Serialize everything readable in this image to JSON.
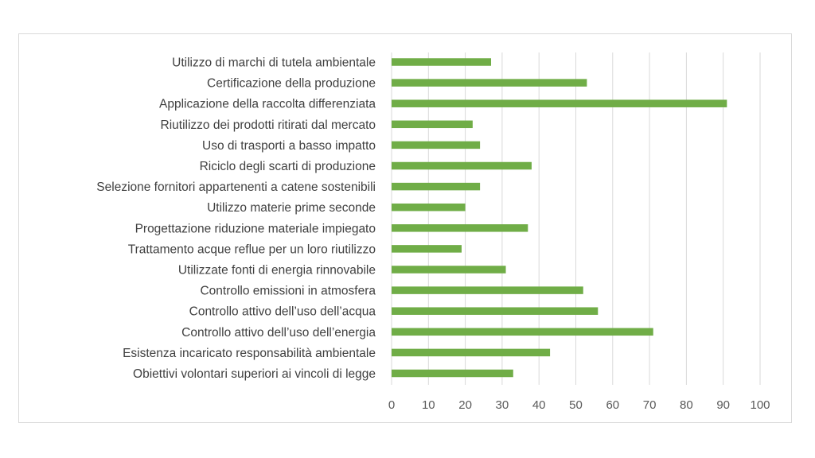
{
  "chart_data": {
    "type": "bar",
    "orientation": "horizontal",
    "title": "",
    "xlabel": "",
    "ylabel": "",
    "categories": [
      "Utilizzo di marchi di tutela ambientale",
      "Certificazione della produzione",
      "Applicazione della raccolta differenziata",
      "Riutilizzo dei prodotti ritirati dal mercato",
      "Uso di trasporti a basso impatto",
      "Riciclo degli scarti di produzione",
      "Selezione fornitori appartenenti a catene sostenibili",
      "Utilizzo materie prime seconde",
      "Progettazione riduzione materiale impiegato",
      "Trattamento acque reflue per un loro riutilizzo",
      "Utilizzate fonti di energia rinnovabile",
      "Controllo emissioni in atmosfera",
      "Controllo attivo dell’uso dell’acqua",
      "Controllo attivo dell’uso dell’energia",
      "Esistenza incaricato responsabilità ambientale",
      "Obiettivi volontari superiori ai vincoli di legge"
    ],
    "values": [
      27,
      53,
      91,
      22,
      24,
      38,
      24,
      20,
      37,
      19,
      31,
      52,
      56,
      71,
      43,
      33
    ],
    "xlim": [
      0,
      100
    ],
    "xticks": [
      0,
      10,
      20,
      30,
      40,
      50,
      60,
      70,
      80,
      90,
      100
    ],
    "grid": "vertical",
    "legend": "none",
    "bar_color": "#70ad47",
    "grid_color": "#d9d9d9"
  }
}
